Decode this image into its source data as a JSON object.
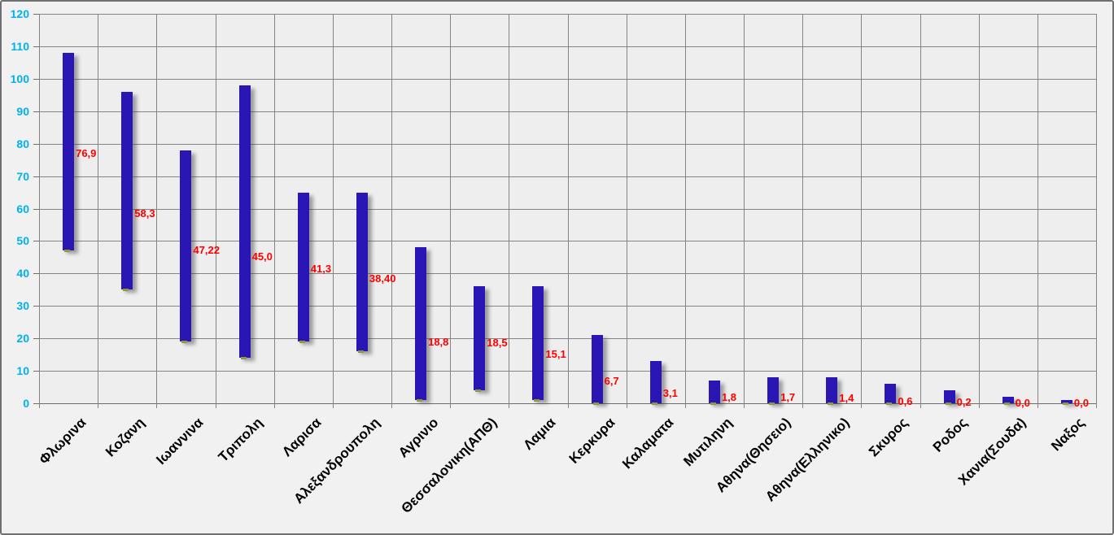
{
  "colors": {
    "bar": "#2a15b5",
    "bar_shadow": "rgba(60,60,60,0.45)",
    "value_label": "#ff0000",
    "y_axis_label": "#00b0f0",
    "gridline": "#848484",
    "axis_line": "#6d6d6d",
    "plot_background": "#efeeee",
    "canvas_background": "#f2f1f1",
    "marker": "#8e9c33",
    "category_label": "#000000"
  },
  "chart_data": {
    "type": "bar",
    "variant": "floating-range-column",
    "title": "",
    "xlabel": "",
    "ylabel": "",
    "legend": false,
    "grid": true,
    "ylim": [
      0,
      120
    ],
    "ytick_step": 10,
    "y_tick_labels": [
      "0",
      "10",
      "20",
      "30",
      "40",
      "50",
      "60",
      "70",
      "80",
      "90",
      "100",
      "110",
      "120"
    ],
    "categories": [
      "Φλωρινα",
      "Κοζανη",
      "Ιωαννινα",
      "Τριπολη",
      "Λαρισα",
      "Αλεξανδρουπολη",
      "Αγρινιο",
      "Θεσσαλονικη(ΑΠΘ)",
      "Λαμια",
      "Κερκυρα",
      "Καλαματα",
      "Μυτιληνη",
      "Αθηνα(Θησειο)",
      "Αθηνα(Ελληνικο)",
      "Σκυρος",
      "Ροδος",
      "Χανια(Σουδα)",
      "Ναξος"
    ],
    "series": [
      {
        "name": "range-low",
        "values": [
          47,
          35,
          19,
          14,
          19,
          16,
          1,
          4,
          1,
          0,
          0,
          0,
          0,
          0,
          0,
          0,
          0,
          0
        ]
      },
      {
        "name": "range-high",
        "values": [
          108,
          96,
          78,
          98,
          65,
          65,
          48,
          36,
          36,
          21,
          13,
          7,
          8,
          8,
          6,
          4,
          2,
          1
        ]
      },
      {
        "name": "point-values",
        "values": [
          76.9,
          58.3,
          47.22,
          45.0,
          41.3,
          38.4,
          18.8,
          18.5,
          15.1,
          6.7,
          3.1,
          1.8,
          1.7,
          1.4,
          0.6,
          0.2,
          0.0,
          0.0
        ],
        "labels": [
          "76,9",
          "58,3",
          "47,22",
          "45,0",
          "41,3",
          "38,40",
          "18,8",
          "18,5",
          "15,1",
          "6,7",
          "3,1",
          "1,8",
          "1,7",
          "1,4",
          "0,6",
          "0,2",
          "0,0",
          "0,0"
        ]
      }
    ]
  }
}
